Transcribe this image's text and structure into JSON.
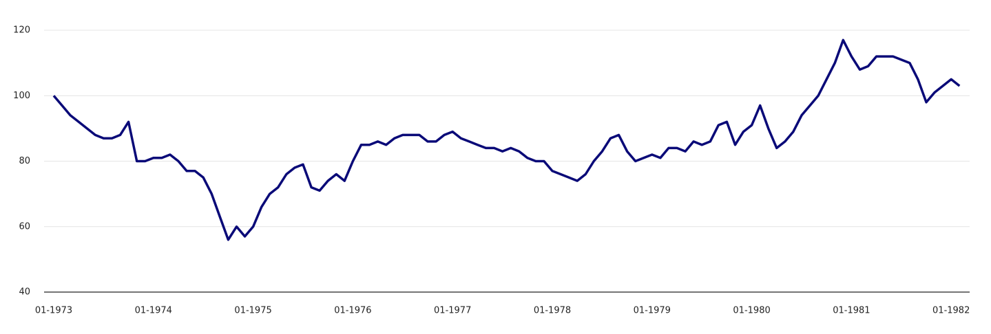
{
  "chart_data": {
    "type": "line",
    "x": [
      "01-1973",
      "02-1973",
      "03-1973",
      "04-1973",
      "05-1973",
      "06-1973",
      "07-1973",
      "08-1973",
      "09-1973",
      "10-1973",
      "11-1973",
      "12-1973",
      "01-1974",
      "02-1974",
      "03-1974",
      "04-1974",
      "05-1974",
      "06-1974",
      "07-1974",
      "08-1974",
      "09-1974",
      "10-1974",
      "11-1974",
      "12-1974",
      "01-1975",
      "02-1975",
      "03-1975",
      "04-1975",
      "05-1975",
      "06-1975",
      "07-1975",
      "08-1975",
      "09-1975",
      "10-1975",
      "11-1975",
      "12-1975",
      "01-1976",
      "02-1976",
      "03-1976",
      "04-1976",
      "05-1976",
      "06-1976",
      "07-1976",
      "08-1976",
      "09-1976",
      "10-1976",
      "11-1976",
      "12-1976",
      "01-1977",
      "02-1977",
      "03-1977",
      "04-1977",
      "05-1977",
      "06-1977",
      "07-1977",
      "08-1977",
      "09-1977",
      "10-1977",
      "11-1977",
      "12-1977",
      "01-1978",
      "02-1978",
      "03-1978",
      "04-1978",
      "05-1978",
      "06-1978",
      "07-1978",
      "08-1978",
      "09-1978",
      "10-1978",
      "11-1978",
      "12-1978",
      "01-1979",
      "02-1979",
      "03-1979",
      "04-1979",
      "05-1979",
      "06-1979",
      "07-1979",
      "08-1979",
      "09-1979",
      "10-1979",
      "11-1979",
      "12-1979",
      "01-1980",
      "02-1980",
      "03-1980",
      "04-1980",
      "05-1980",
      "06-1980",
      "07-1980",
      "08-1980",
      "09-1980",
      "10-1980",
      "11-1980",
      "12-1980",
      "01-1981",
      "02-1981",
      "03-1981",
      "04-1981",
      "05-1981",
      "06-1981",
      "07-1981",
      "08-1981",
      "09-1981",
      "10-1981",
      "11-1981",
      "12-1981",
      "01-1982",
      "02-1982"
    ],
    "series": [
      {
        "color": "#0a0a78",
        "values": [
          100,
          97,
          94,
          92,
          90,
          88,
          87,
          87,
          88,
          92,
          80,
          80,
          81,
          81,
          82,
          80,
          77,
          77,
          75,
          70,
          63,
          56,
          60,
          57,
          60,
          66,
          70,
          72,
          76,
          78,
          79,
          72,
          71,
          74,
          76,
          74,
          80,
          85,
          85,
          86,
          85,
          87,
          88,
          88,
          88,
          86,
          86,
          88,
          89,
          87,
          86,
          85,
          84,
          84,
          83,
          84,
          83,
          81,
          80,
          80,
          77,
          76,
          75,
          74,
          76,
          80,
          83,
          87,
          88,
          83,
          80,
          81,
          82,
          81,
          84,
          84,
          83,
          86,
          85,
          86,
          91,
          92,
          85,
          89,
          91,
          97,
          90,
          84,
          86,
          89,
          94,
          97,
          100,
          105,
          110,
          117,
          112,
          108,
          109,
          112,
          112,
          112,
          111,
          110,
          105,
          98,
          101,
          103,
          105,
          103
        ]
      }
    ],
    "xticks": [
      "01-1973",
      "01-1974",
      "01-1975",
      "01-1976",
      "01-1977",
      "01-1978",
      "01-1979",
      "01-1980",
      "01-1981",
      "01-1982"
    ],
    "ylim": [
      40,
      120
    ],
    "yticks": [
      40,
      60,
      80,
      100,
      120
    ],
    "grid": true
  }
}
